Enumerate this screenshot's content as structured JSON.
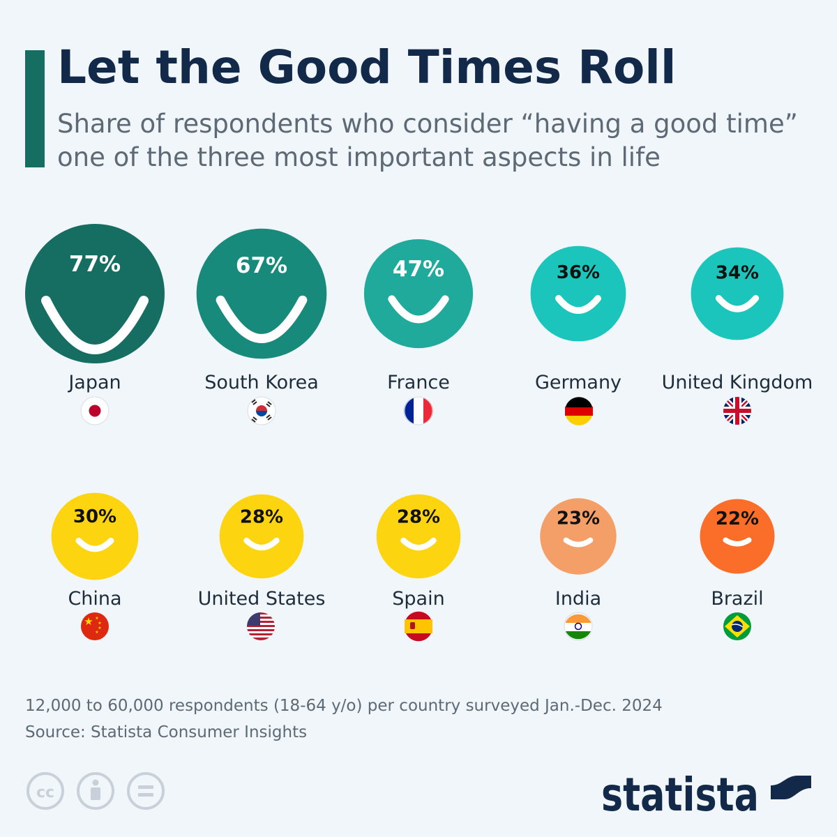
{
  "title": "Let the Good Times Roll",
  "subtitle": "Share of respondents who consider “having a good time” one of the three most important aspects in life",
  "footer": {
    "note": "12,000 to 60,000 respondents (18-64 y/o) per country surveyed Jan.-Dec. 2024",
    "source": "Source: Statista Consumer Insights",
    "brand": "statista"
  },
  "icons": {
    "license": [
      "cc-icon",
      "attribution-icon",
      "no-derivatives-icon"
    ],
    "brand": "statista-logo-icon"
  },
  "colors": {
    "title": "#13294a",
    "accent": "#156e61",
    "text": "#5d6a76",
    "background": "#f1f6fa"
  },
  "chart_data": {
    "type": "bubble",
    "unit": "%",
    "categories": [
      "Japan",
      "South Korea",
      "France",
      "Germany",
      "United Kingdom",
      "China",
      "United States",
      "Spain",
      "India",
      "Brazil"
    ],
    "values": [
      77,
      67,
      47,
      36,
      34,
      30,
      28,
      28,
      23,
      22
    ],
    "labels": [
      "77%",
      "67%",
      "47%",
      "36%",
      "34%",
      "30%",
      "28%",
      "28%",
      "23%",
      "22%"
    ],
    "colors": [
      "#156e61",
      "#178a7b",
      "#1faa9b",
      "#1bc5bb",
      "#1bc5bb",
      "#fcd40f",
      "#fcd40f",
      "#fcd40f",
      "#f59f68",
      "#fb6e2a"
    ],
    "flags": [
      "japan-flag-icon",
      "south-korea-flag-icon",
      "france-flag-icon",
      "germany-flag-icon",
      "united-kingdom-flag-icon",
      "china-flag-icon",
      "united-states-flag-icon",
      "spain-flag-icon",
      "india-flag-icon",
      "brazil-flag-icon"
    ]
  }
}
